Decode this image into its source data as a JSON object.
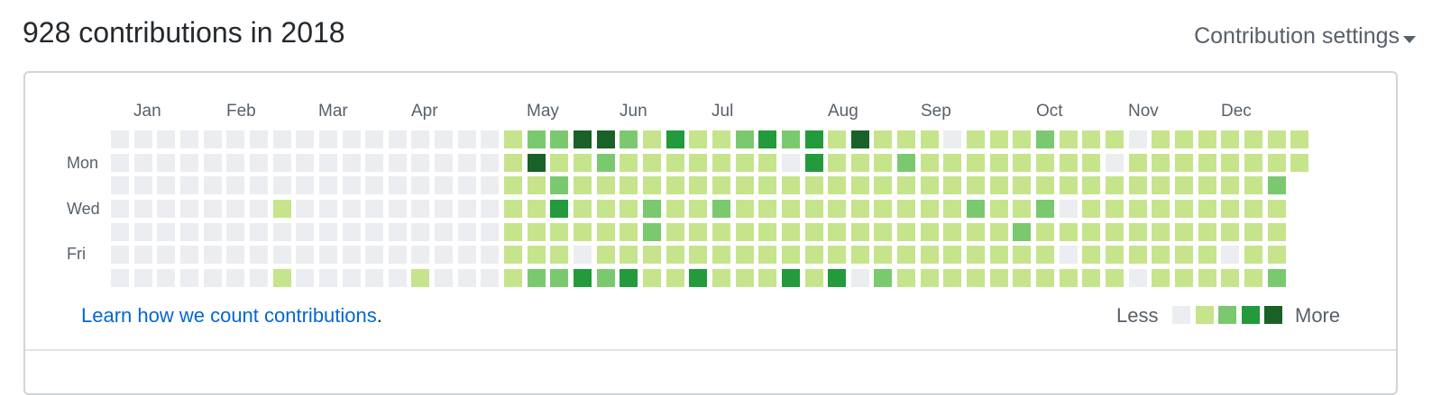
{
  "header": {
    "title": "928 contributions in 2018",
    "settings_label": "Contribution settings"
  },
  "calendar": {
    "months": [
      "Jan",
      "Feb",
      "Mar",
      "Apr",
      "May",
      "Jun",
      "Jul",
      "Aug",
      "Sep",
      "Oct",
      "Nov",
      "Dec"
    ],
    "weekday_labels": [
      "Mon",
      "Wed",
      "Fri"
    ],
    "colors": [
      "#ebedf0",
      "#c6e48b",
      "#7bc96f",
      "#239a3b",
      "#196127"
    ],
    "weeks": [
      [
        0,
        0,
        0,
        0,
        0,
        0,
        0
      ],
      [
        0,
        0,
        0,
        0,
        0,
        0,
        0
      ],
      [
        0,
        0,
        0,
        0,
        0,
        0,
        0
      ],
      [
        0,
        0,
        0,
        0,
        0,
        0,
        0
      ],
      [
        0,
        0,
        0,
        0,
        0,
        0,
        0
      ],
      [
        0,
        0,
        0,
        0,
        0,
        0,
        0
      ],
      [
        0,
        0,
        0,
        0,
        0,
        0,
        0
      ],
      [
        0,
        0,
        0,
        1,
        0,
        0,
        1
      ],
      [
        0,
        0,
        0,
        0,
        0,
        0,
        0
      ],
      [
        0,
        0,
        0,
        0,
        0,
        0,
        0
      ],
      [
        0,
        0,
        0,
        0,
        0,
        0,
        0
      ],
      [
        0,
        0,
        0,
        0,
        0,
        0,
        0
      ],
      [
        0,
        0,
        0,
        0,
        0,
        0,
        0
      ],
      [
        0,
        0,
        0,
        0,
        0,
        0,
        1
      ],
      [
        0,
        0,
        0,
        0,
        0,
        0,
        0
      ],
      [
        0,
        0,
        0,
        0,
        0,
        0,
        0
      ],
      [
        0,
        0,
        0,
        0,
        0,
        0,
        0
      ],
      [
        1,
        1,
        1,
        1,
        1,
        1,
        1
      ],
      [
        2,
        4,
        1,
        1,
        1,
        1,
        2
      ],
      [
        2,
        1,
        2,
        3,
        1,
        1,
        2
      ],
      [
        4,
        1,
        1,
        1,
        1,
        0,
        3
      ],
      [
        4,
        2,
        1,
        1,
        1,
        1,
        2
      ],
      [
        2,
        1,
        1,
        1,
        1,
        1,
        3
      ],
      [
        1,
        1,
        1,
        2,
        2,
        1,
        1
      ],
      [
        3,
        1,
        1,
        1,
        1,
        1,
        1
      ],
      [
        1,
        1,
        1,
        1,
        1,
        1,
        3
      ],
      [
        1,
        1,
        1,
        2,
        1,
        1,
        1
      ],
      [
        2,
        1,
        1,
        1,
        1,
        1,
        1
      ],
      [
        3,
        1,
        1,
        1,
        1,
        1,
        1
      ],
      [
        2,
        0,
        1,
        1,
        1,
        1,
        3
      ],
      [
        3,
        3,
        1,
        1,
        1,
        1,
        1
      ],
      [
        1,
        1,
        1,
        1,
        1,
        1,
        3
      ],
      [
        4,
        1,
        1,
        1,
        1,
        1,
        0
      ],
      [
        1,
        1,
        1,
        1,
        1,
        1,
        2
      ],
      [
        1,
        2,
        1,
        1,
        1,
        1,
        1
      ],
      [
        1,
        1,
        1,
        1,
        1,
        1,
        1
      ],
      [
        0,
        1,
        1,
        1,
        1,
        1,
        1
      ],
      [
        1,
        1,
        1,
        2,
        1,
        1,
        1
      ],
      [
        1,
        1,
        1,
        1,
        1,
        1,
        1
      ],
      [
        1,
        1,
        1,
        1,
        2,
        1,
        1
      ],
      [
        2,
        1,
        1,
        2,
        1,
        1,
        1
      ],
      [
        1,
        1,
        1,
        0,
        1,
        0,
        1
      ],
      [
        1,
        1,
        1,
        1,
        1,
        1,
        1
      ],
      [
        1,
        0,
        1,
        1,
        1,
        1,
        1
      ],
      [
        0,
        1,
        1,
        1,
        1,
        1,
        0
      ],
      [
        1,
        1,
        1,
        1,
        1,
        1,
        1
      ],
      [
        1,
        1,
        1,
        1,
        1,
        1,
        1
      ],
      [
        1,
        1,
        1,
        1,
        1,
        1,
        1
      ],
      [
        1,
        1,
        1,
        1,
        1,
        0,
        1
      ],
      [
        1,
        1,
        1,
        1,
        1,
        1,
        1
      ],
      [
        1,
        1,
        2,
        1,
        1,
        1,
        2
      ],
      [
        1,
        1
      ]
    ]
  },
  "footer": {
    "learn_link": "Learn how we count contributions",
    "learn_period": ".",
    "legend_less": "Less",
    "legend_more": "More"
  }
}
